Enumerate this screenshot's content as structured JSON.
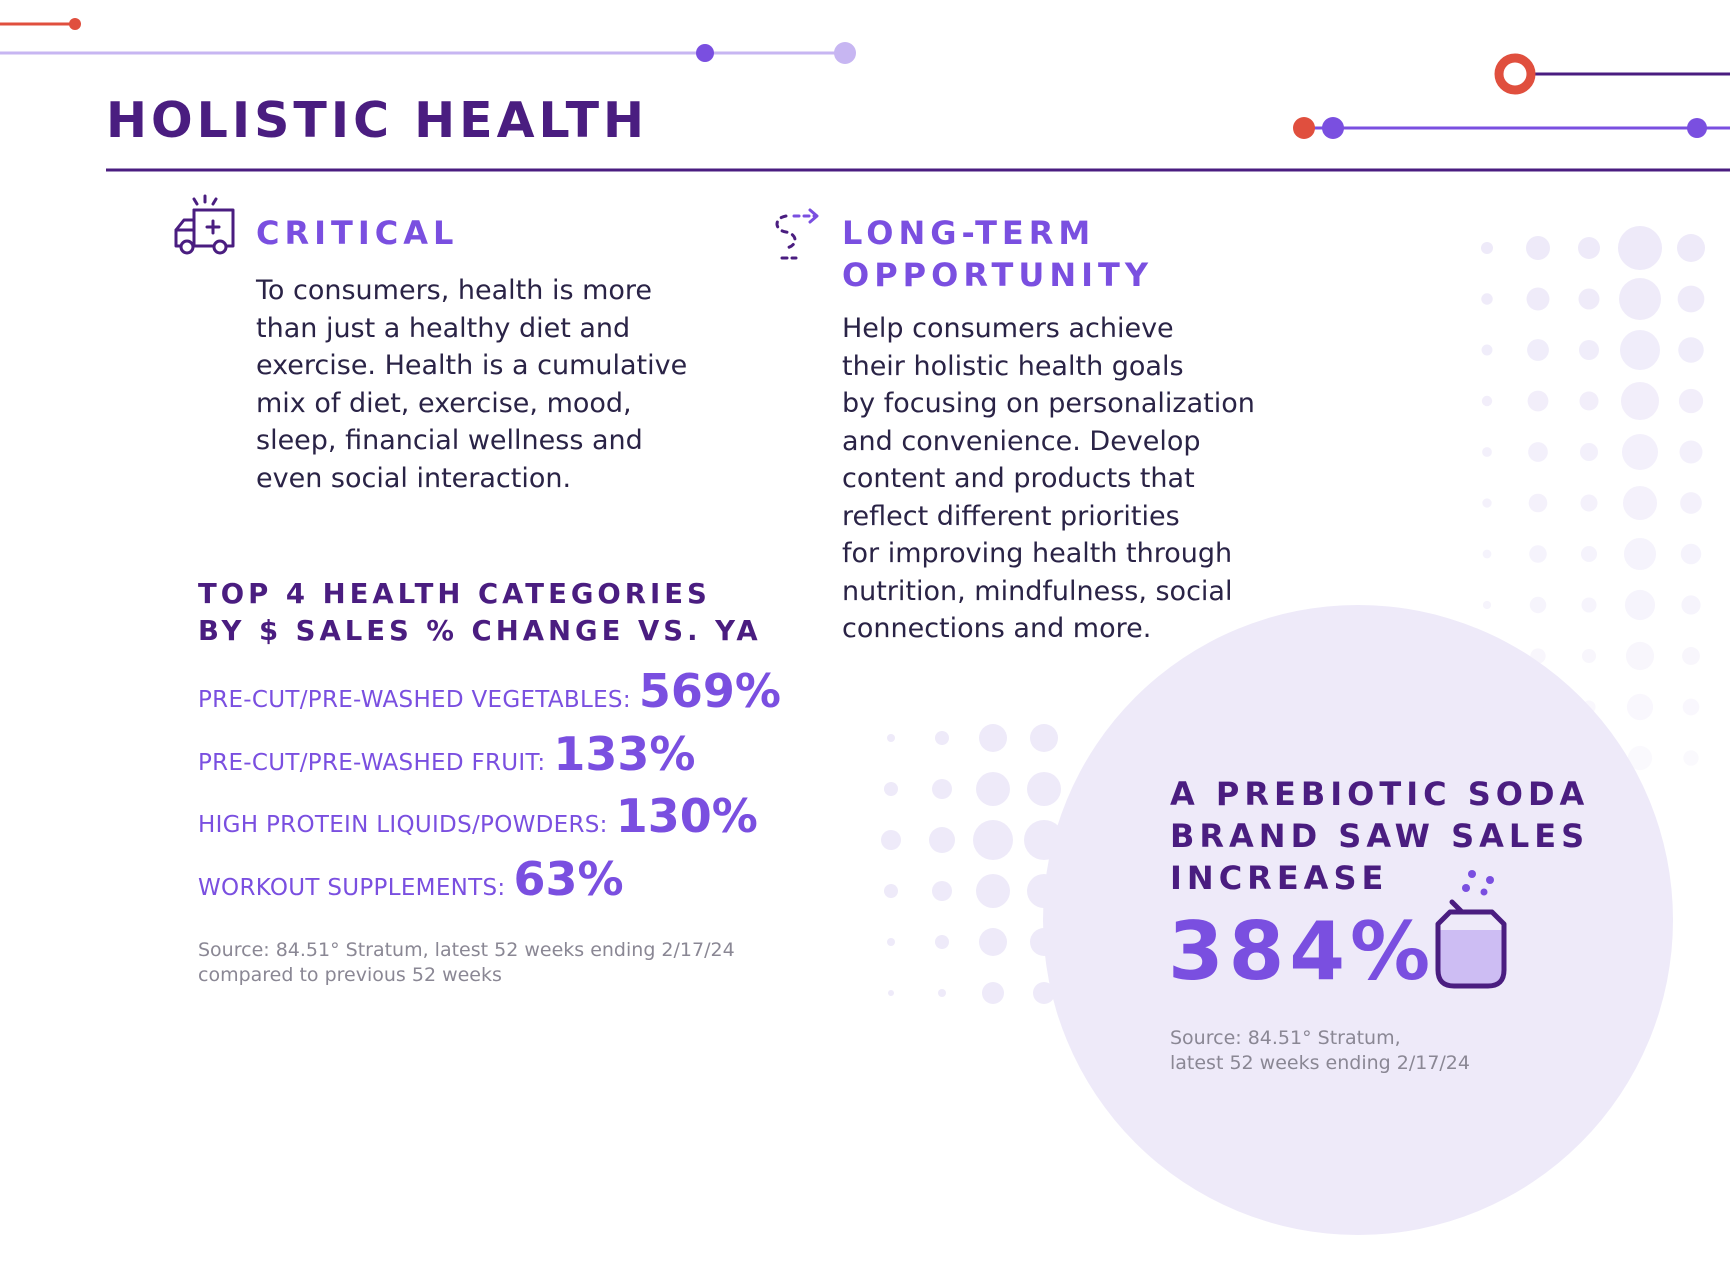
{
  "title": "HOLISTIC HEALTH",
  "critical": {
    "icon": "ambulance-icon",
    "heading": "CRITICAL",
    "body_lines": [
      "To consumers, health is more",
      "than just a healthy diet and",
      "exercise. Health is a cumulative",
      "mix of diet, exercise, mood,",
      "sleep, financial wellness and",
      "even social interaction."
    ]
  },
  "opportunity": {
    "icon": "winding-path-arrow-icon",
    "heading_lines": [
      "LONG-TERM",
      "OPPORTUNITY"
    ],
    "body_lines": [
      "Help consumers achieve",
      "their holistic health goals",
      "by focusing on personalization",
      "and convenience. Develop",
      "content and products that",
      "reflect different priorities",
      "for improving health through",
      "nutrition, mindfulness, social",
      "connections and more."
    ]
  },
  "categories": {
    "heading_lines": [
      "TOP 4 HEALTH CATEGORIES",
      "BY $ SALES % CHANGE VS. YA"
    ],
    "items": [
      {
        "label": "PRE-CUT/PRE-WASHED VEGETABLES:",
        "value": "569%"
      },
      {
        "label": "PRE-CUT/PRE-WASHED FRUIT:",
        "value": "133%"
      },
      {
        "label": "HIGH PROTEIN LIQUIDS/POWDERS:",
        "value": "130%"
      },
      {
        "label": "WORKOUT SUPPLEMENTS:",
        "value": "63%"
      }
    ],
    "source_lines": [
      "Source: 84.51° Stratum, latest 52 weeks ending 2/17/24",
      "compared to previous 52 weeks"
    ]
  },
  "callout": {
    "heading_lines": [
      "A PREBIOTIC SODA",
      "BRAND SAW SALES",
      "INCREASE"
    ],
    "value": "384%",
    "icon": "soda-can-icon",
    "source_lines": [
      "Source: 84.51° Stratum,",
      "latest 52 weeks ending 2/17/24"
    ]
  },
  "colors": {
    "title": "#4a1d80",
    "accent": "#7a4fe0",
    "lavender": "#eeeaf9",
    "coral": "#e04f3e",
    "source_gray": "#8a8794"
  }
}
